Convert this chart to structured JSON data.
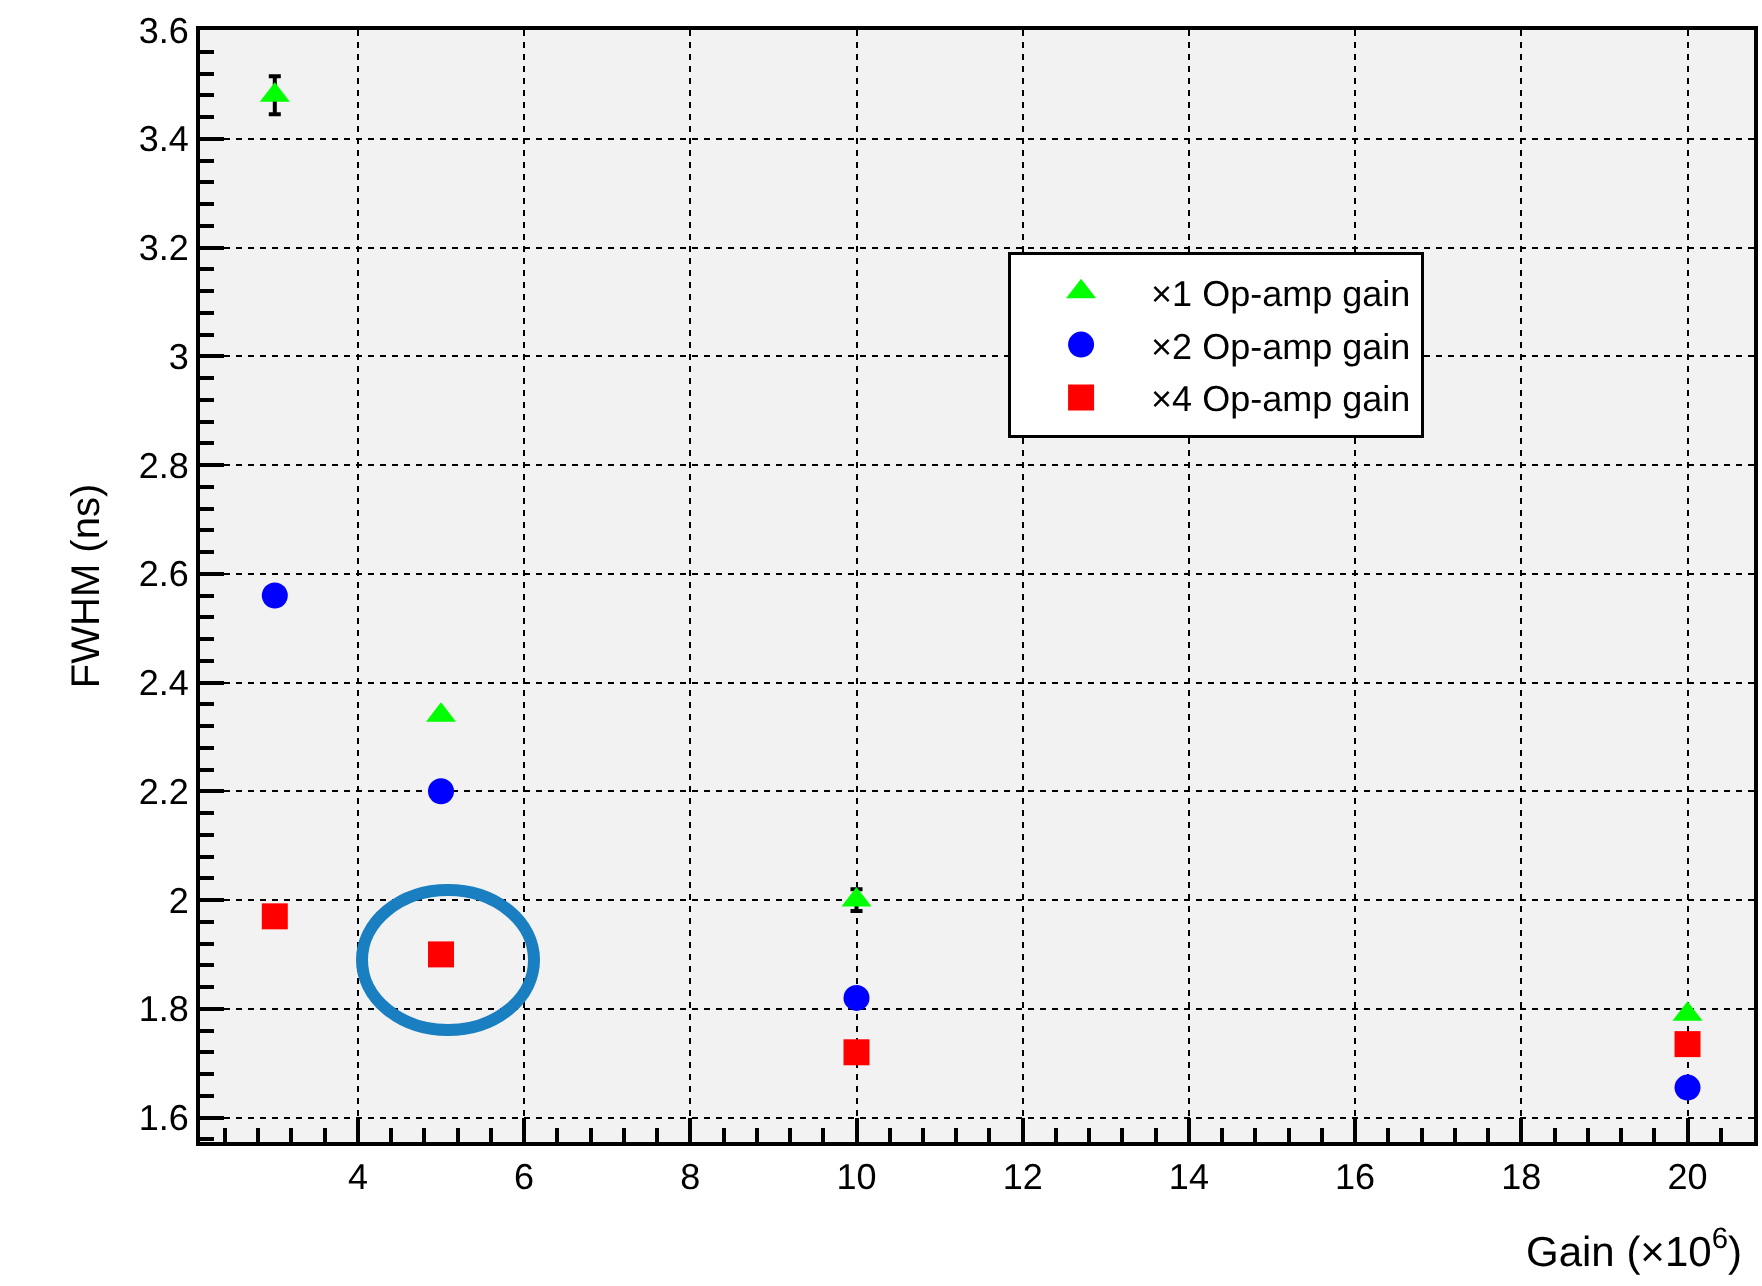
{
  "chart_data": {
    "type": "scatter",
    "xlabel": "Gain (×10$^{6}$)",
    "ylabel": "FWHM (ns)",
    "x": [
      3,
      5,
      10,
      20
    ],
    "series": [
      {
        "name": "×1 Op-amp gain",
        "color": "#00ff00",
        "marker": "triangle",
        "values": [
          3.48,
          2.34,
          2.0,
          1.79
        ],
        "errors": [
          0.035,
          null,
          0.02,
          null
        ]
      },
      {
        "name": "×2 Op-amp gain",
        "color": "#0000ff",
        "marker": "circle",
        "values": [
          2.56,
          2.2,
          1.82,
          1.655
        ]
      },
      {
        "name": "×4 Op-amp gain",
        "color": "#ff0000",
        "marker": "square",
        "values": [
          1.97,
          1.9,
          1.72,
          1.735
        ]
      }
    ],
    "xlim": [
      2.1,
      20.8
    ],
    "xticks": [
      4,
      6,
      8,
      10,
      12,
      14,
      16,
      18,
      20
    ],
    "ylim": [
      1.555,
      3.6
    ],
    "yticks": [
      1.6,
      1.8,
      2,
      2.2,
      2.4,
      2.6,
      2.8,
      3,
      3.2,
      3.4,
      3.6
    ],
    "grid": true,
    "legend": "top right"
  }
}
